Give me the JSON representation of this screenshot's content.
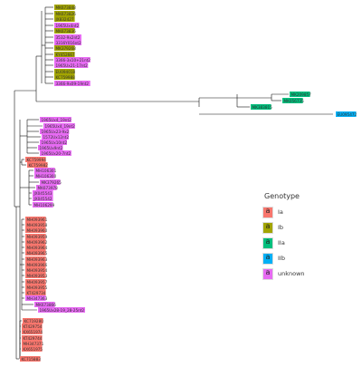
{
  "legend": {
    "title": "Genotype",
    "key_letter": "a",
    "entries": [
      {
        "id": "Ia",
        "label": "Ia",
        "color": "#f8766d"
      },
      {
        "id": "Ib",
        "label": "Ib",
        "color": "#a3a500"
      },
      {
        "id": "IIa",
        "label": "IIa",
        "color": "#00bf7d"
      },
      {
        "id": "IIb",
        "label": "IIb",
        "color": "#00b0f6"
      },
      {
        "id": "unknown",
        "label": "unknown",
        "color": "#e76bf3"
      }
    ]
  },
  "tips": [
    {
      "label": "MK673848",
      "genotype": "Ib"
    },
    {
      "label": "MK673826",
      "genotype": "Ib"
    },
    {
      "label": "JX832427",
      "genotype": "Ib"
    },
    {
      "label": "1965Ux4nt2",
      "genotype": "unknown"
    },
    {
      "label": "MK673836",
      "genotype": "Ib"
    },
    {
      "label": "3532-9x2nt2",
      "genotype": "unknown"
    },
    {
      "label": "3316Y016nt2",
      "genotype": "unknown"
    },
    {
      "label": "MK379268",
      "genotype": "Ib"
    },
    {
      "label": "KY452667",
      "genotype": "Ib"
    },
    {
      "label": "3366-3x10+21nt2",
      "genotype": "unknown"
    },
    {
      "label": "1965Ux21-17nt2",
      "genotype": "unknown"
    },
    {
      "label": "EU094018",
      "genotype": "Ib"
    },
    {
      "label": "KC759988",
      "genotype": "Ib"
    },
    {
      "label": "3366-9x09-19nt2",
      "genotype": "unknown"
    },
    {
      "label": "MK209857",
      "genotype": "IIa"
    },
    {
      "label": "MK056735",
      "genotype": "IIa"
    },
    {
      "label": "MK383815",
      "genotype": "IIa"
    },
    {
      "label": "EU095472",
      "genotype": "IIb"
    },
    {
      "label": "1965Ux4_19nt2",
      "genotype": "unknown"
    },
    {
      "label": "1965Ux4_19nt2",
      "genotype": "unknown"
    },
    {
      "label": "1965Ux23-9x2",
      "genotype": "unknown"
    },
    {
      "label": "1572Ux12nt2",
      "genotype": "unknown"
    },
    {
      "label": "1965Ux10nt2",
      "genotype": "unknown"
    },
    {
      "label": "1965Ux9nt2",
      "genotype": "unknown"
    },
    {
      "label": "1965Ux20-7nt2",
      "genotype": "unknown"
    },
    {
      "label": "KC759994",
      "genotype": "Ia"
    },
    {
      "label": "KC759982",
      "genotype": "Ia"
    },
    {
      "label": "MH106301",
      "genotype": "unknown"
    },
    {
      "label": "MH106300",
      "genotype": "unknown"
    },
    {
      "label": "MK379265",
      "genotype": "unknown"
    },
    {
      "label": "MK673978",
      "genotype": "unknown"
    },
    {
      "label": "JX045543",
      "genotype": "unknown"
    },
    {
      "label": "JX045542",
      "genotype": "unknown"
    },
    {
      "label": "MH106299",
      "genotype": "unknown"
    },
    {
      "label": "MH093961",
      "genotype": "Ia"
    },
    {
      "label": "MH093958",
      "genotype": "Ia"
    },
    {
      "label": "MH093960",
      "genotype": "Ia"
    },
    {
      "label": "MH093959",
      "genotype": "Ia"
    },
    {
      "label": "MH093962",
      "genotype": "Ia"
    },
    {
      "label": "MH093964",
      "genotype": "Ia"
    },
    {
      "label": "MH093965",
      "genotype": "Ia"
    },
    {
      "label": "MH093963",
      "genotype": "Ia"
    },
    {
      "label": "MH093966",
      "genotype": "Ia"
    },
    {
      "label": "MH093954",
      "genotype": "Ia"
    },
    {
      "label": "MH093953",
      "genotype": "Ia"
    },
    {
      "label": "MH093957",
      "genotype": "Ia"
    },
    {
      "label": "MH093955",
      "genotype": "Ia"
    },
    {
      "label": "KT429734",
      "genotype": "Ia"
    },
    {
      "label": "MH347363",
      "genotype": "unknown"
    },
    {
      "label": "MK673866",
      "genotype": "unknown"
    },
    {
      "label": "1965Ux28-19_28-25nt2",
      "genotype": "unknown"
    },
    {
      "label": "KC719280",
      "genotype": "Ia"
    },
    {
      "label": "KT429754",
      "genotype": "Ia"
    },
    {
      "label": "KX651974",
      "genotype": "Ia"
    },
    {
      "label": "KT429744",
      "genotype": "Ia"
    },
    {
      "label": "MH347371",
      "genotype": "Ia"
    },
    {
      "label": "KX651975",
      "genotype": "Ia"
    },
    {
      "label": "KC715883",
      "genotype": "Ia"
    }
  ]
}
